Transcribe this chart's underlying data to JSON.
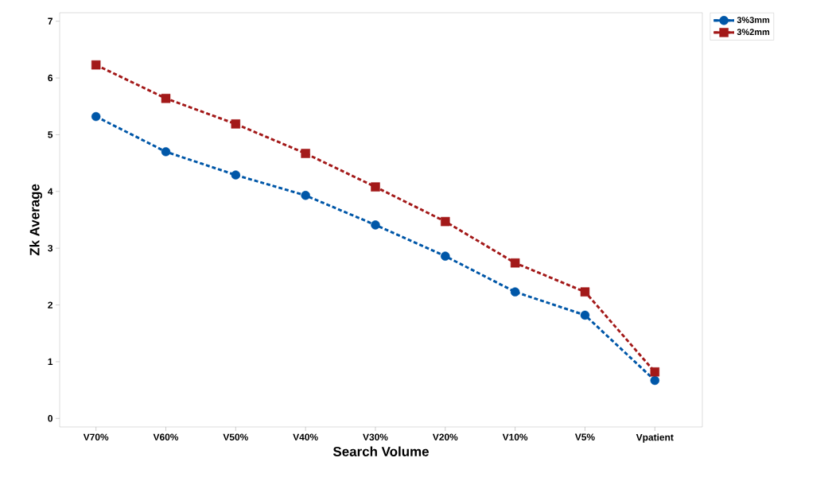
{
  "chart_data": {
    "type": "line",
    "xlabel": "Search Volume",
    "ylabel": "Zk Average",
    "categories": [
      "V70%",
      "V60%",
      "V50%",
      "V40%",
      "V30%",
      "V20%",
      "V10%",
      "V5%",
      "Vpatient"
    ],
    "series": [
      {
        "name": "3%3mm",
        "color": "#0057a8",
        "marker": "circle",
        "values": [
          5.32,
          4.7,
          4.29,
          3.93,
          3.41,
          2.86,
          2.23,
          1.82,
          0.67
        ]
      },
      {
        "name": "3%2mm",
        "color": "#a31919",
        "marker": "square",
        "values": [
          6.23,
          5.64,
          5.19,
          4.67,
          4.08,
          3.47,
          2.74,
          2.23,
          0.82
        ]
      }
    ],
    "ylim": [
      -0.15,
      7.15
    ],
    "yticks": [
      0,
      1,
      2,
      3,
      4,
      5,
      6,
      7
    ],
    "line_style": "dashed",
    "legend": "top right",
    "grid": false
  }
}
